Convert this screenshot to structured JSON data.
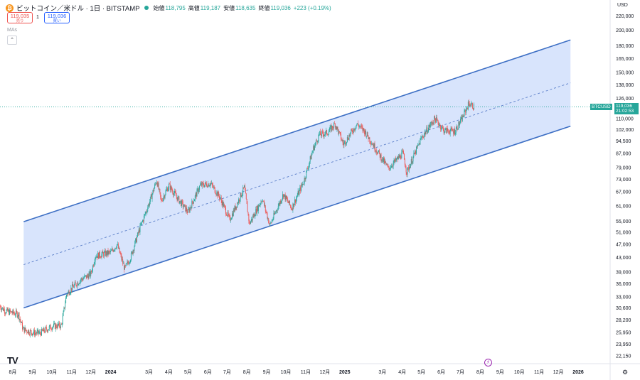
{
  "header": {
    "symbol_icon": "bitcoin-icon",
    "title": "ビットコイン／米ドル · 1日 · BITSTAMP",
    "ohlc": [
      {
        "label": "始値",
        "value": "118,795"
      },
      {
        "label": "高値",
        "value": "119,187"
      },
      {
        "label": "安値",
        "value": "118,635"
      },
      {
        "label": "終値",
        "value": "119,036"
      }
    ],
    "change": "+223 (+0.19%)"
  },
  "trade": {
    "sell_price": "119,035",
    "sell_label": "売り",
    "spread": "1",
    "buy_price": "119,036",
    "buy_label": "買い"
  },
  "indicator_label": "MAs",
  "currency": "USD",
  "last_price_tag": {
    "symbol": "BTCUSD",
    "price": "119,036",
    "countdown": "21:02:53"
  },
  "logo_text": "TV",
  "colors": {
    "up": "#26a69a",
    "down": "#ef5350",
    "channel_line": "#3d6fc4",
    "channel_fill": "#d1dffb",
    "midline": "#5b7fc9"
  },
  "chart_data": {
    "type": "candlestick",
    "title": "ビットコイン／米ドル · 1日 · BITSTAMP",
    "y_scale": "log",
    "ylim": [
      21000,
      245000
    ],
    "xlim": [
      "2023-07-12",
      "2026-02-20"
    ],
    "y_ticks": [
      22150,
      23950,
      25950,
      28200,
      30600,
      33000,
      36000,
      39000,
      43000,
      47000,
      51000,
      55000,
      61000,
      67000,
      73000,
      79000,
      87000,
      94500,
      102000,
      110000,
      126000,
      138000,
      150000,
      165000,
      180000,
      200000,
      220000
    ],
    "x_ticks": [
      {
        "date": "2023-08-01",
        "label": "8月"
      },
      {
        "date": "2023-09-01",
        "label": "9月"
      },
      {
        "date": "2023-10-01",
        "label": "10月"
      },
      {
        "date": "2023-11-01",
        "label": "11月"
      },
      {
        "date": "2023-12-01",
        "label": "12月"
      },
      {
        "date": "2024-01-01",
        "label": "2024"
      },
      {
        "date": "2024-03-01",
        "label": "3月"
      },
      {
        "date": "2024-04-01",
        "label": "4月"
      },
      {
        "date": "2024-05-01",
        "label": "5月"
      },
      {
        "date": "2024-06-01",
        "label": "6月"
      },
      {
        "date": "2024-07-01",
        "label": "7月"
      },
      {
        "date": "2024-08-01",
        "label": "8月"
      },
      {
        "date": "2024-09-01",
        "label": "9月"
      },
      {
        "date": "2024-10-01",
        "label": "10月"
      },
      {
        "date": "2024-11-01",
        "label": "11月"
      },
      {
        "date": "2024-12-01",
        "label": "12月"
      },
      {
        "date": "2025-01-01",
        "label": "2025"
      },
      {
        "date": "2025-03-01",
        "label": "3月"
      },
      {
        "date": "2025-04-01",
        "label": "4月"
      },
      {
        "date": "2025-05-01",
        "label": "5月"
      },
      {
        "date": "2025-06-01",
        "label": "6月"
      },
      {
        "date": "2025-07-01",
        "label": "7月"
      },
      {
        "date": "2025-08-01",
        "label": "8月"
      },
      {
        "date": "2025-09-01",
        "label": "9月"
      },
      {
        "date": "2025-10-01",
        "label": "10月"
      },
      {
        "date": "2025-11-01",
        "label": "11月"
      },
      {
        "date": "2025-12-01",
        "label": "12月"
      },
      {
        "date": "2026-01-01",
        "label": "2026"
      }
    ],
    "last_price": 119036,
    "price_path": [
      [
        "2023-07-12",
        31000
      ],
      [
        "2023-07-20",
        30000
      ],
      [
        "2023-08-10",
        29300
      ],
      [
        "2023-08-17",
        26500
      ],
      [
        "2023-09-01",
        25900
      ],
      [
        "2023-09-12",
        25800
      ],
      [
        "2023-10-01",
        27000
      ],
      [
        "2023-10-16",
        27200
      ],
      [
        "2023-10-24",
        33500
      ],
      [
        "2023-11-01",
        35000
      ],
      [
        "2023-11-15",
        37000
      ],
      [
        "2023-12-01",
        38500
      ],
      [
        "2023-12-08",
        43500
      ],
      [
        "2024-01-01",
        44500
      ],
      [
        "2024-01-11",
        47000
      ],
      [
        "2024-01-23",
        39800
      ],
      [
        "2024-02-01",
        43000
      ],
      [
        "2024-02-15",
        52000
      ],
      [
        "2024-03-01",
        62000
      ],
      [
        "2024-03-13",
        72500
      ],
      [
        "2024-03-20",
        63000
      ],
      [
        "2024-04-01",
        70000
      ],
      [
        "2024-04-15",
        64000
      ],
      [
        "2024-05-01",
        58500
      ],
      [
        "2024-05-20",
        70000
      ],
      [
        "2024-06-05",
        71000
      ],
      [
        "2024-06-20",
        64500
      ],
      [
        "2024-07-05",
        55500
      ],
      [
        "2024-07-28",
        69000
      ],
      [
        "2024-08-05",
        54000
      ],
      [
        "2024-08-25",
        64000
      ],
      [
        "2024-09-06",
        53500
      ],
      [
        "2024-09-27",
        66000
      ],
      [
        "2024-10-10",
        60000
      ],
      [
        "2024-10-29",
        72000
      ],
      [
        "2024-11-13",
        90000
      ],
      [
        "2024-11-22",
        98500
      ],
      [
        "2024-12-05",
        100000
      ],
      [
        "2024-12-17",
        106000
      ],
      [
        "2024-12-30",
        92500
      ],
      [
        "2025-01-20",
        106000
      ],
      [
        "2025-02-01",
        101000
      ],
      [
        "2025-02-28",
        84000
      ],
      [
        "2025-03-10",
        78500
      ],
      [
        "2025-04-02",
        87000
      ],
      [
        "2025-04-08",
        76500
      ],
      [
        "2025-05-01",
        96500
      ],
      [
        "2025-05-22",
        110000
      ],
      [
        "2025-06-05",
        101500
      ],
      [
        "2025-06-22",
        101000
      ],
      [
        "2025-07-03",
        109500
      ],
      [
        "2025-07-14",
        122000
      ],
      [
        "2025-07-22",
        119036
      ]
    ],
    "annotations": [
      {
        "type": "parallel_channel",
        "lower": [
          [
            "2023-08-18",
            30600
          ],
          [
            "2025-12-20",
            104500
          ]
        ],
        "upper": [
          [
            "2023-08-18",
            54800
          ],
          [
            "2025-12-20",
            187000
          ]
        ],
        "median": [
          [
            "2023-08-18",
            41000
          ],
          [
            "2025-12-20",
            140000
          ]
        ]
      },
      {
        "type": "horizontal_line",
        "value": 119036
      }
    ]
  }
}
